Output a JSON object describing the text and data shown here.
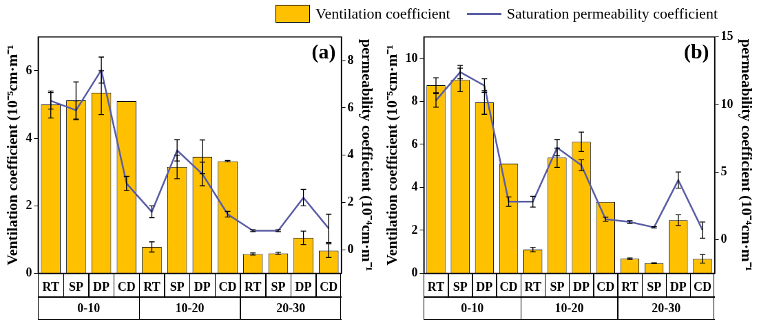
{
  "chart_data": [
    {
      "type": "bar",
      "title": "(a)",
      "categories": [
        "RT",
        "SP",
        "DP",
        "CD",
        "RT",
        "SP",
        "DP",
        "CD",
        "RT",
        "SP",
        "DP",
        "CD"
      ],
      "annotations": [
        "0-10",
        "10-20",
        "20-30"
      ],
      "ylabel": "Ventilation coefficient (10⁻⁵cm·m⁻¹",
      "y2label": "permeability coefficient (10⁻⁴cm·m⁻¹",
      "ylim": [
        0,
        7
      ],
      "yticks": [
        0,
        2,
        4,
        6
      ],
      "y2lim": [
        -1,
        9
      ],
      "y2ticks": [
        0,
        2,
        4,
        6,
        8
      ],
      "grid": false,
      "legend": "top",
      "marker": "none",
      "series": [
        {
          "name": "Ventilation coefficient",
          "type": "bar",
          "color": "#ffc000",
          "values": [
            5.0,
            5.12,
            5.35,
            5.1,
            0.78,
            3.15,
            3.45,
            3.32,
            0.57,
            0.59,
            1.05,
            0.67
          ],
          "errors": [
            0.4,
            0.55,
            0.65,
            null,
            0.15,
            0.35,
            0.5,
            0.02,
            0.03,
            0.03,
            0.2,
            0.2
          ]
        },
        {
          "name": "Saturation permeability coefficient",
          "type": "line",
          "axis": "y2",
          "color": "#5b5ea6",
          "values": [
            6.3,
            5.9,
            7.6,
            2.8,
            1.6,
            4.2,
            3.2,
            1.5,
            0.8,
            0.8,
            2.2,
            0.9
          ],
          "errors": [
            0.35,
            0.4,
            0.55,
            0.3,
            0.25,
            0.45,
            0.5,
            0.12,
            0.04,
            0.04,
            0.35,
            0.6
          ]
        }
      ]
    },
    {
      "type": "bar",
      "title": "(b)",
      "categories": [
        "RT",
        "SP",
        "DP",
        "CD",
        "RT",
        "SP",
        "DP",
        "CD",
        "RT",
        "SP",
        "DP",
        "CD"
      ],
      "annotations": [
        "0-10",
        "10-20",
        "20-30"
      ],
      "ylabel": "Ventilation coefficient (10⁻⁵cm·m⁻¹",
      "y2label": "permeability coefficient (10⁻⁴cm·m⁻¹",
      "ylim": [
        0,
        11
      ],
      "yticks": [
        0,
        2,
        4,
        6,
        8,
        10
      ],
      "y2lim": [
        -2.5,
        15
      ],
      "y2ticks": [
        0,
        5,
        10,
        15
      ],
      "grid": false,
      "marker": "none",
      "series": [
        {
          "type": "bar",
          "color": "#ffc000",
          "values": [
            8.75,
            9.0,
            7.95,
            5.1,
            1.1,
            5.38,
            6.12,
            3.32,
            0.68,
            0.47,
            2.47,
            0.67
          ],
          "errors": [
            0.35,
            0.55,
            0.55,
            null,
            0.1,
            0.45,
            0.45,
            null,
            0.03,
            0.02,
            0.25,
            0.2
          ]
        },
        {
          "type": "line",
          "axis": "y2",
          "color": "#5b5ea6",
          "values": [
            10.3,
            12.4,
            11.4,
            2.8,
            2.8,
            6.8,
            5.5,
            1.5,
            1.3,
            0.9,
            4.4,
            0.7
          ],
          "errors": [
            0.5,
            0.5,
            0.5,
            0.35,
            0.4,
            0.6,
            0.4,
            0.15,
            0.1,
            0.05,
            0.6,
            0.6
          ]
        }
      ]
    }
  ]
}
